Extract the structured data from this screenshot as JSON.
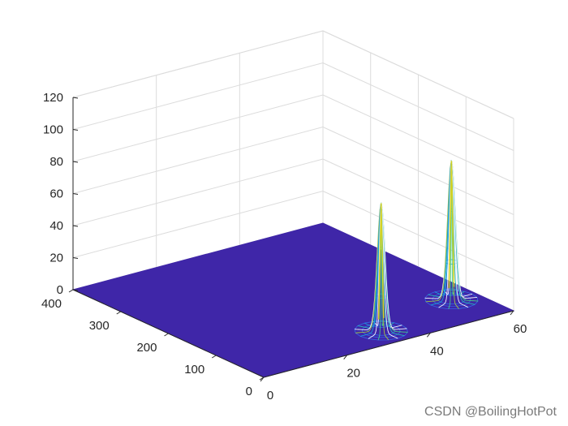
{
  "chart_data": {
    "type": "surface-mesh-3d",
    "title": "",
    "xlabel": "",
    "ylabel": "",
    "zlabel": "",
    "xlim": [
      0,
      60
    ],
    "ylim": [
      0,
      400
    ],
    "zlim": [
      0,
      120
    ],
    "x_ticks": [
      "0",
      "20",
      "40",
      "60"
    ],
    "y_ticks": [
      "0",
      "100",
      "200",
      "300",
      "400"
    ],
    "z_ticks": [
      "0",
      "20",
      "40",
      "60",
      "80",
      "100",
      "120"
    ],
    "grid": true,
    "base_color": "#3f26a8",
    "peaks": [
      {
        "x": 33,
        "y": 42,
        "z": 80
      },
      {
        "x": 54,
        "y": 78,
        "z": 87
      }
    ]
  },
  "watermark": "CSDN @BoilingHotPot"
}
